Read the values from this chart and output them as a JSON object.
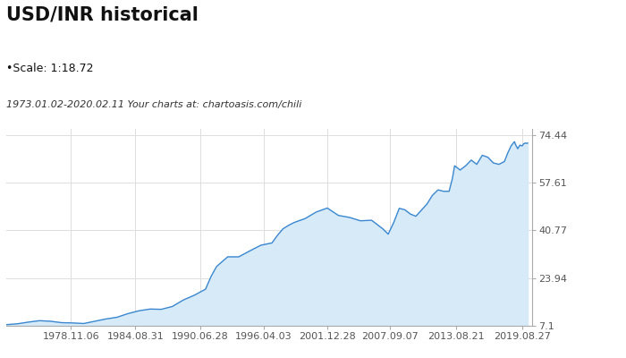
{
  "title": "USD/INR historical",
  "scale_label": "•Scale: 1:18.72",
  "date_range_label": "1973.01.02-2020.02.11 Your charts at: chartoasis.com/chili",
  "x_tick_labels": [
    "1978.11.06",
    "1984.08.31",
    "1990.06.28",
    "1996.04.03",
    "2001.12.28",
    "2007.09.07",
    "2013.08.21",
    "2019.08.27"
  ],
  "y_tick_labels": [
    "7.1",
    "23.94",
    "40.77",
    "57.61",
    "74.44"
  ],
  "y_tick_values": [
    7.1,
    23.94,
    40.77,
    57.61,
    74.44
  ],
  "x_start_year": 1973.0,
  "x_end_year": 2020.5,
  "y_min": 7.1,
  "y_max": 76.5,
  "line_color": "#3a87d0",
  "fill_color": "#d6eaf8",
  "background_color": "#ffffff",
  "grid_color": "#dddddd",
  "title_fontsize": 15,
  "scale_fontsize": 9,
  "date_fontsize": 8,
  "axis_label_fontsize": 8,
  "years": [
    1973.0,
    1974.0,
    1975.0,
    1976.0,
    1977.0,
    1978.0,
    1979.0,
    1980.0,
    1981.0,
    1982.0,
    1983.0,
    1984.0,
    1985.0,
    1986.0,
    1987.0,
    1988.0,
    1989.0,
    1990.0,
    1991.0,
    1991.5,
    1992.0,
    1993.0,
    1994.0,
    1995.0,
    1996.0,
    1997.0,
    1997.5,
    1998.0,
    1998.5,
    1999.0,
    2000.0,
    2001.0,
    2002.0,
    2003.0,
    2004.0,
    2005.0,
    2006.0,
    2007.0,
    2007.5,
    2008.0,
    2008.5,
    2009.0,
    2009.5,
    2010.0,
    2011.0,
    2011.5,
    2012.0,
    2012.5,
    2013.0,
    2013.3,
    2013.5,
    2014.0,
    2014.5,
    2015.0,
    2015.5,
    2016.0,
    2016.5,
    2017.0,
    2017.5,
    2018.0,
    2018.3,
    2018.6,
    2018.9,
    2019.0,
    2019.2,
    2019.4,
    2019.6,
    2019.75,
    2019.9,
    2020.0,
    2020.1
  ],
  "values": [
    7.5,
    7.8,
    8.4,
    8.9,
    8.7,
    8.2,
    8.1,
    7.9,
    8.7,
    9.5,
    10.1,
    11.4,
    12.4,
    13.0,
    12.9,
    13.9,
    16.2,
    17.9,
    20.0,
    24.5,
    28.0,
    31.4,
    31.4,
    33.5,
    35.5,
    36.3,
    39.0,
    41.3,
    42.5,
    43.5,
    44.9,
    47.2,
    48.6,
    46.0,
    45.3,
    44.1,
    44.3,
    41.3,
    39.4,
    43.5,
    48.5,
    48.0,
    46.5,
    45.7,
    50.0,
    53.1,
    55.0,
    54.5,
    54.5,
    59.0,
    63.5,
    62.0,
    63.5,
    65.5,
    64.0,
    67.2,
    66.5,
    64.5,
    64.0,
    65.0,
    68.0,
    70.5,
    72.0,
    71.0,
    69.5,
    70.8,
    70.5,
    71.3,
    71.5,
    71.4,
    71.5
  ],
  "x_tick_positions": [
    1978.84,
    1984.66,
    1990.49,
    1996.26,
    2001.98,
    2007.69,
    2013.64,
    2019.65
  ]
}
